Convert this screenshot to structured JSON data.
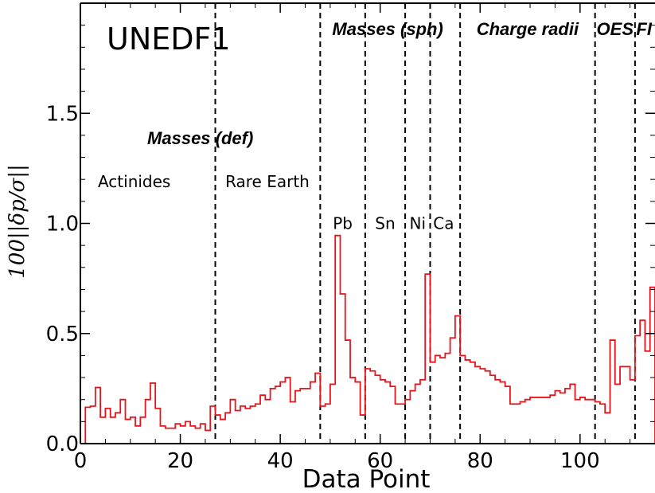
{
  "chart_data": {
    "type": "line",
    "style": "step",
    "title": "UNEDF1",
    "xlabel": "Data Point",
    "ylabel": "100||δp/σ||",
    "xlim": [
      0,
      115
    ],
    "ylim": [
      0.0,
      2.0
    ],
    "x_ticks": [
      0,
      20,
      40,
      60,
      80,
      100
    ],
    "x_tick_labels": [
      "0",
      "20",
      "40",
      "60",
      "80",
      "100"
    ],
    "y_ticks": [
      0.0,
      0.5,
      1.0,
      1.5
    ],
    "y_tick_labels": [
      "0.0",
      "0.5",
      "1.0",
      "1.5"
    ],
    "grid": false,
    "series": [
      {
        "color": "#e8141c",
        "x": [
          1,
          2,
          3,
          4,
          5,
          6,
          7,
          8,
          9,
          10,
          11,
          12,
          13,
          14,
          15,
          16,
          17,
          18,
          19,
          20,
          21,
          22,
          23,
          24,
          25,
          26,
          27,
          28,
          29,
          30,
          31,
          32,
          33,
          34,
          35,
          36,
          37,
          38,
          39,
          40,
          41,
          42,
          43,
          44,
          45,
          46,
          47,
          48,
          49,
          50,
          51,
          52,
          53,
          54,
          55,
          56,
          57,
          58,
          59,
          60,
          61,
          62,
          63,
          64,
          65,
          66,
          67,
          68,
          69,
          70,
          71,
          72,
          73,
          74,
          75,
          76,
          77,
          78,
          79,
          80,
          81,
          82,
          83,
          84,
          85,
          86,
          87,
          88,
          89,
          90,
          91,
          92,
          93,
          94,
          95,
          96,
          97,
          98,
          99,
          100,
          101,
          102,
          103,
          104,
          105,
          106,
          107,
          108,
          109,
          110,
          111,
          112,
          113,
          114
        ],
        "y": [
          0.165,
          0.17,
          0.255,
          0.12,
          0.16,
          0.12,
          0.14,
          0.2,
          0.11,
          0.12,
          0.08,
          0.12,
          0.2,
          0.275,
          0.16,
          0.08,
          0.07,
          0.07,
          0.09,
          0.08,
          0.1,
          0.08,
          0.07,
          0.09,
          0.06,
          0.17,
          0.13,
          0.11,
          0.14,
          0.2,
          0.15,
          0.17,
          0.16,
          0.17,
          0.18,
          0.22,
          0.2,
          0.25,
          0.26,
          0.28,
          0.3,
          0.19,
          0.24,
          0.25,
          0.25,
          0.28,
          0.32,
          0.17,
          0.18,
          0.27,
          0.945,
          0.68,
          0.47,
          0.3,
          0.28,
          0.13,
          0.34,
          0.33,
          0.31,
          0.29,
          0.28,
          0.26,
          0.18,
          0.18,
          0.2,
          0.24,
          0.27,
          0.29,
          0.77,
          0.37,
          0.4,
          0.39,
          0.41,
          0.48,
          0.58,
          0.4,
          0.38,
          0.37,
          0.35,
          0.34,
          0.33,
          0.31,
          0.29,
          0.28,
          0.26,
          0.18,
          0.18,
          0.19,
          0.2,
          0.21,
          0.21,
          0.21,
          0.21,
          0.22,
          0.24,
          0.23,
          0.25,
          0.27,
          0.2,
          0.21,
          0.2,
          0.2,
          0.19,
          0.18,
          0.14,
          0.47,
          0.27,
          0.35,
          0.35,
          0.29,
          0.49,
          0.56,
          0.42,
          0.71
        ]
      }
    ],
    "dividers": [
      27,
      48,
      57,
      65,
      70,
      76,
      103,
      111
    ],
    "group_labels": [
      {
        "text": "Masses (def)",
        "x": 24,
        "y": 1.36
      },
      {
        "text": "Masses (sph)",
        "x": 61.5,
        "y": 1.855
      },
      {
        "text": "Charge radii",
        "x": 89.5,
        "y": 1.855
      },
      {
        "text": "OES",
        "x": 107,
        "y": 1.855
      },
      {
        "text": "FI",
        "x": 112.8,
        "y": 1.855
      }
    ],
    "region_labels": [
      {
        "text": "Actinides",
        "x": 3.5,
        "y": 1.165,
        "anchor": "start"
      },
      {
        "text": "Rare Earth",
        "x": 29,
        "y": 1.165,
        "anchor": "start"
      },
      {
        "text": "Pb",
        "x": 52.5,
        "y": 0.975,
        "anchor": "middle"
      },
      {
        "text": "Sn",
        "x": 61,
        "y": 0.975,
        "anchor": "middle"
      },
      {
        "text": "Ni",
        "x": 67.5,
        "y": 0.975,
        "anchor": "middle"
      },
      {
        "text": "Ca",
        "x": 70.6,
        "y": 0.975,
        "anchor": "start"
      }
    ]
  }
}
